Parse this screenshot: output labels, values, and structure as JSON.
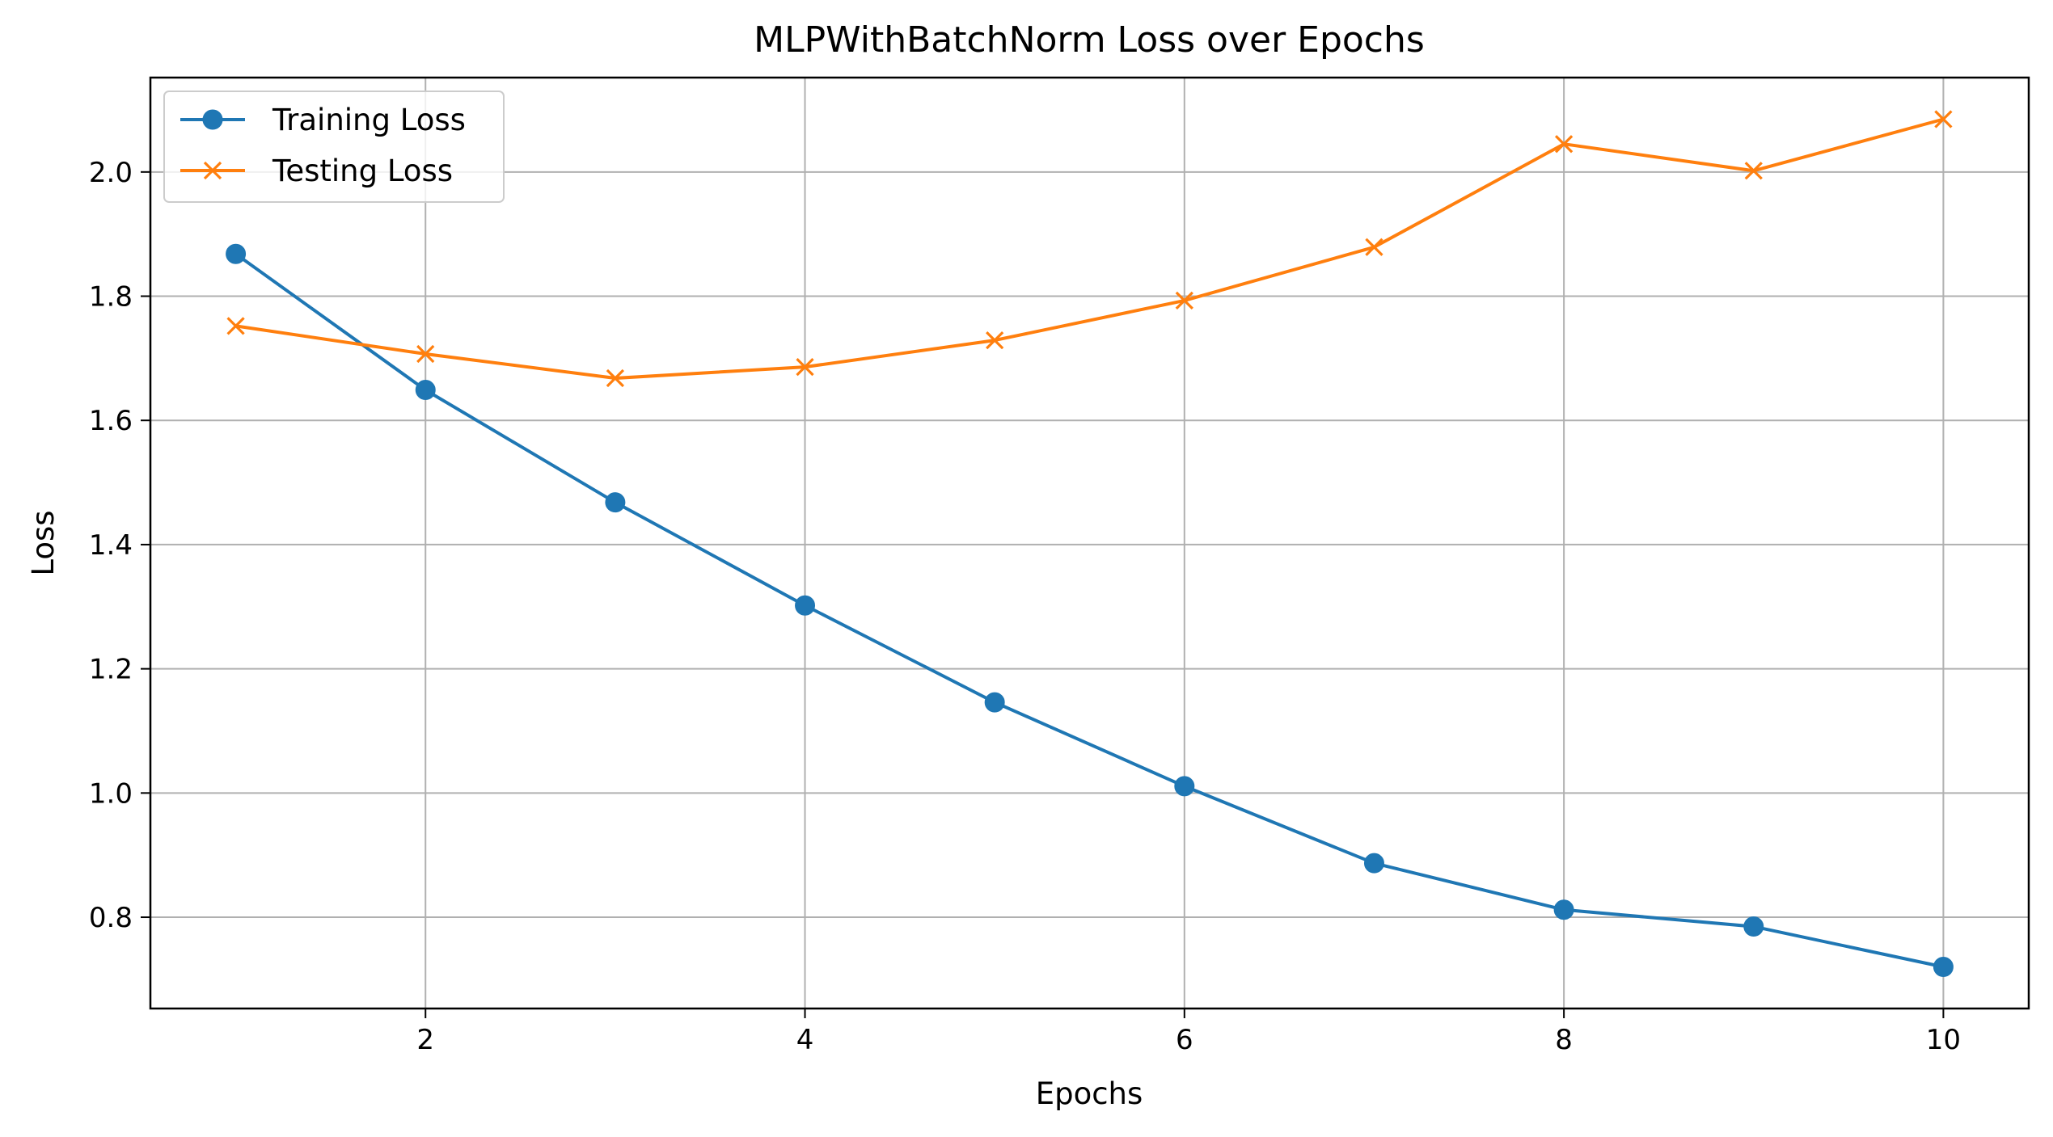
{
  "colors": {
    "training": "#1f77b4",
    "testing": "#ff7f0e",
    "grid": "#b0b0b0",
    "axis": "#000000"
  },
  "chart_data": {
    "type": "line",
    "title": "MLPWithBatchNorm Loss over Epochs",
    "xlabel": "Epochs",
    "ylabel": "Loss",
    "xlim": [
      0.55,
      10.45
    ],
    "ylim": [
      0.653,
      2.152
    ],
    "xticks": [
      2,
      4,
      6,
      8,
      10
    ],
    "xtick_labels": [
      "2",
      "4",
      "6",
      "8",
      "10"
    ],
    "yticks": [
      0.8,
      1.0,
      1.2,
      1.4,
      1.6,
      1.8,
      2.0
    ],
    "ytick_labels": [
      "0.8",
      "1.0",
      "1.2",
      "1.4",
      "1.6",
      "1.8",
      "2.0"
    ],
    "grid": true,
    "legend_position": "top-left",
    "x": [
      1,
      2,
      3,
      4,
      5,
      6,
      7,
      8,
      9,
      10
    ],
    "series": [
      {
        "name": "Training Loss",
        "marker": "circle",
        "color": "#1f77b4",
        "values": [
          1.868,
          1.649,
          1.468,
          1.302,
          1.146,
          1.011,
          0.887,
          0.812,
          0.785,
          0.72
        ]
      },
      {
        "name": "Testing Loss",
        "marker": "x",
        "color": "#ff7f0e",
        "values": [
          1.752,
          1.707,
          1.668,
          1.686,
          1.729,
          1.793,
          1.879,
          2.045,
          2.002,
          2.085
        ]
      }
    ]
  }
}
